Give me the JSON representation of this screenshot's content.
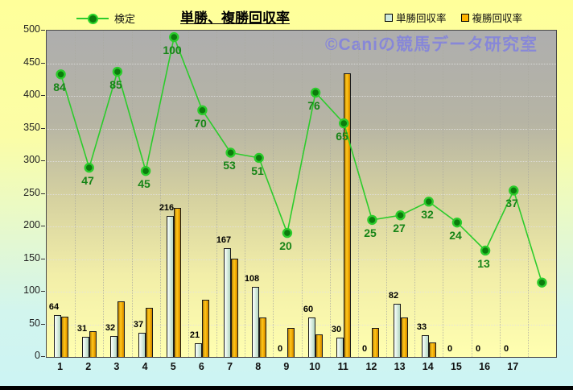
{
  "watermark": "©Caniの競馬データ研究室",
  "legend": {
    "line_label": "検定",
    "bar1_label": "単勝回収率",
    "bar2_label": "複勝回収率"
  },
  "colors": {
    "line_green": "#2ccc2c",
    "marker_green": "#0c7c0c",
    "line_label_green": "#178517",
    "tansho_bar": "#d9efe2",
    "fukusho_bar": "#ffb400",
    "watermark_purple": "#8787d8"
  },
  "chart_data": {
    "type": "bar",
    "subtype": "combo bar + line",
    "title": "単勝、複勝回収率",
    "categories": [
      "1",
      "2",
      "3",
      "4",
      "5",
      "6",
      "7",
      "8",
      "9",
      "10",
      "11",
      "12",
      "13",
      "14",
      "15",
      "16",
      "17",
      ""
    ],
    "ylim": [
      0,
      500
    ],
    "ytick_interval": 50,
    "grid": true,
    "legend_position": "top",
    "series": [
      {
        "name": "単勝回収率",
        "type": "bar",
        "data_labels": true,
        "values": [
          64,
          31,
          32,
          37,
          216,
          21,
          167,
          108,
          0,
          60,
          30,
          0,
          82,
          33,
          0,
          0,
          0,
          null
        ]
      },
      {
        "name": "複勝回収率",
        "type": "bar",
        "data_labels": false,
        "values": [
          62,
          40,
          85,
          75,
          228,
          88,
          150,
          60,
          44,
          35,
          435,
          45,
          60,
          22,
          0,
          0,
          0,
          null
        ]
      },
      {
        "name": "検定",
        "type": "line",
        "data_labels": [
          "84",
          "47",
          "85",
          "45",
          "100",
          "70",
          "53",
          "51",
          "20",
          "76",
          "65",
          "25",
          "27",
          "32",
          "24",
          "13",
          "37",
          ""
        ],
        "plotted_values": [
          433,
          290,
          437,
          285,
          490,
          378,
          313,
          305,
          190,
          405,
          358,
          210,
          217,
          238,
          206,
          163,
          255,
          114
        ]
      }
    ]
  }
}
